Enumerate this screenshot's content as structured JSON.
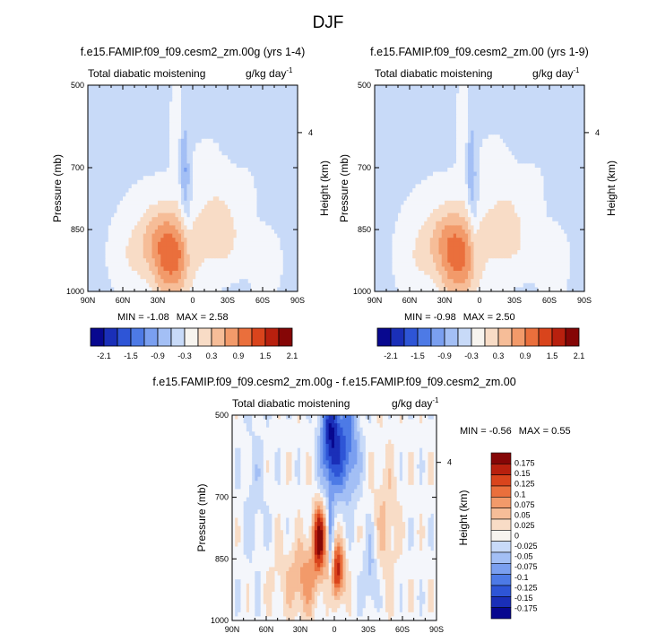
{
  "figure_title": "DJF",
  "colors": {
    "neg": [
      "#08088f",
      "#1a2fb8",
      "#2e55d6",
      "#4d7ae6",
      "#7a9ff0",
      "#a3bff5",
      "#c8daf8"
    ],
    "zero": "#f4f6fb",
    "pos": [
      "#f8dcc6",
      "#f6bd98",
      "#f29a6a",
      "#ea6f3c",
      "#d9441c",
      "#b8200e",
      "#850606"
    ],
    "outline": "#000000"
  },
  "chart_data": [
    {
      "id": "panel1",
      "type": "contour",
      "title": "f.e15.FAMIP.f09_f09.cesm2_zm.00g (yrs 1-4)",
      "left_label": "Total diabatic moistening",
      "right_label": "g/kg day",
      "right_label_sup": "-1",
      "xlabel": "",
      "ylabel": "Pressure (mb)",
      "y2label": "Height (km)",
      "x_ticks": [
        "90N",
        "60N",
        "30N",
        "0",
        "30S",
        "60S",
        "90S"
      ],
      "y_ticks": [
        500,
        700,
        850,
        1000
      ],
      "y2_ticks": [
        "4"
      ],
      "ylim": [
        500,
        1000
      ],
      "min_label": "MIN =",
      "min": "-1.08",
      "max_label": "MAX =",
      "max": "2.58",
      "amp": 1.0,
      "colorbar_labels": [
        "-2.1",
        "-1.5",
        "-0.9",
        "-0.3",
        "0.3",
        "0.9",
        "1.5",
        "2.1"
      ]
    },
    {
      "id": "panel2",
      "type": "contour",
      "title": "f.e15.FAMIP.f09_f09.cesm2_zm.00 (yrs 1-9)",
      "left_label": "Total diabatic moistening",
      "right_label": "g/kg day",
      "right_label_sup": "-1",
      "xlabel": "",
      "ylabel": "Pressure (mb)",
      "y2label": "Height (km)",
      "x_ticks": [
        "90N",
        "60N",
        "30N",
        "0",
        "30S",
        "60S",
        "90S"
      ],
      "y_ticks": [
        500,
        700,
        850,
        1000
      ],
      "y2_ticks": [
        "4"
      ],
      "ylim": [
        500,
        1000
      ],
      "min_label": "MIN =",
      "min": "-0.98",
      "max_label": "MAX =",
      "max": "2.50",
      "amp": 0.96,
      "colorbar_labels": [
        "-2.1",
        "-1.5",
        "-0.9",
        "-0.3",
        "0.3",
        "0.9",
        "1.5",
        "2.1"
      ]
    },
    {
      "id": "diff",
      "type": "contour",
      "title": "f.e15.FAMIP.f09_f09.cesm2_zm.00g - f.e15.FAMIP.f09_f09.cesm2_zm.00",
      "left_label": "Total diabatic moistening",
      "right_label": "g/kg day",
      "right_label_sup": "-1",
      "xlabel": "",
      "ylabel": "Pressure (mb)",
      "y2label": "Height (km)",
      "x_ticks": [
        "90N",
        "60N",
        "30N",
        "0",
        "30S",
        "60S",
        "90S"
      ],
      "y_ticks": [
        500,
        700,
        850,
        1000
      ],
      "y2_ticks": [
        "4"
      ],
      "ylim": [
        500,
        1000
      ],
      "min_label": "MIN =",
      "min": "-0.56",
      "max_label": "MAX =",
      "max": "0.55",
      "colorbar_labels": [
        "0.175",
        "0.15",
        "0.125",
        "0.1",
        "0.075",
        "0.05",
        "0.025",
        "0",
        "-0.025",
        "-0.05",
        "-0.075",
        "-0.1",
        "-0.125",
        "-0.15",
        "-0.175"
      ]
    }
  ]
}
